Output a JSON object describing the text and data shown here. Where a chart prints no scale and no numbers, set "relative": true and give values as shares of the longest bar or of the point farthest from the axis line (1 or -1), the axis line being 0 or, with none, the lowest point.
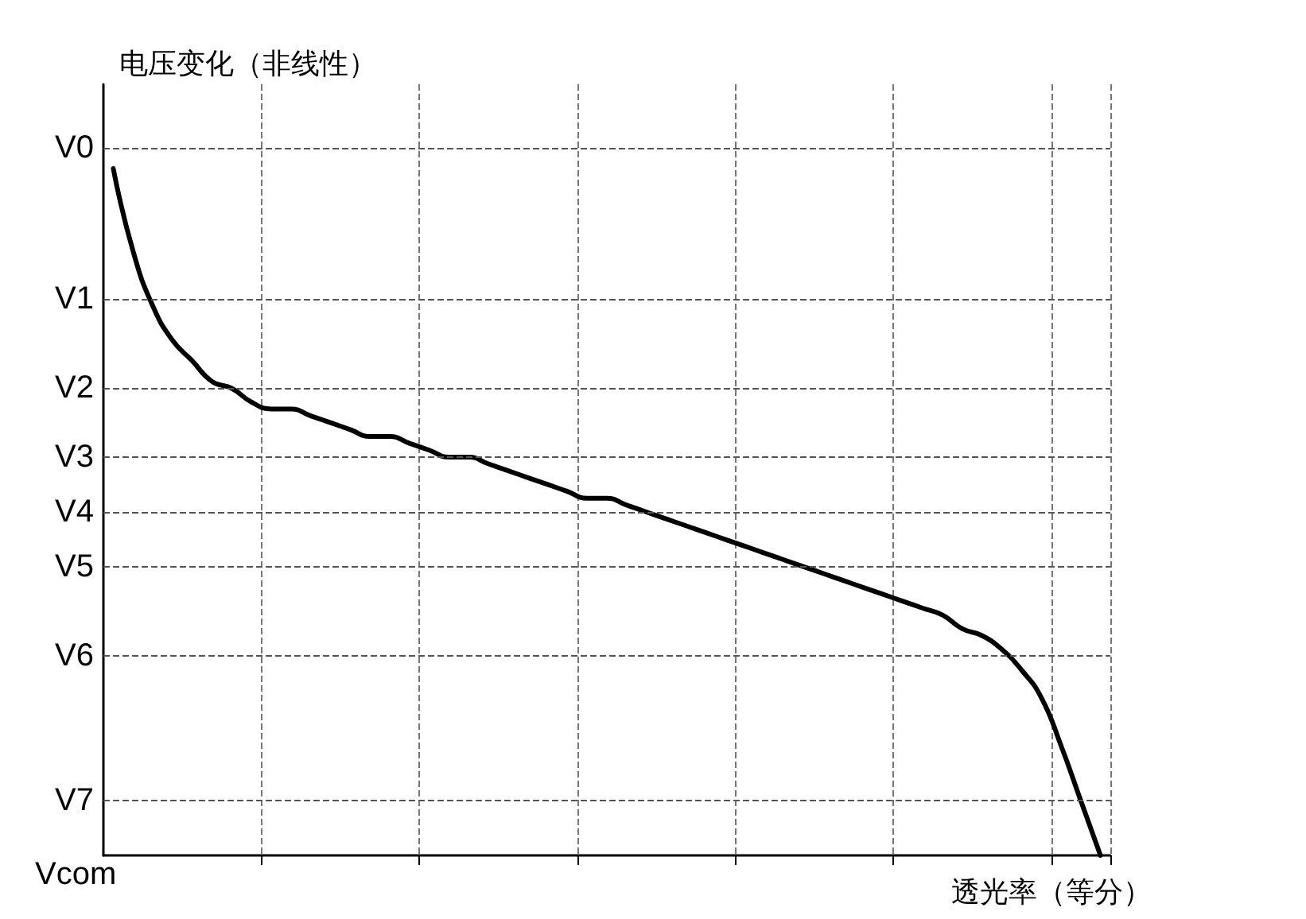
{
  "chart_data": {
    "type": "line",
    "relative": true,
    "ylabel": "电压变化（非线性）",
    "xlabel": "透光率（等分）",
    "annotations": [
      "Vcom"
    ],
    "color": "#000000",
    "marker": "none",
    "grid": "x",
    "categories": [
      null,
      null,
      null,
      null,
      null,
      null,
      null,
      null,
      null,
      null,
      null,
      null,
      null,
      null,
      null,
      null,
      null,
      null,
      null,
      null,
      null,
      null,
      null,
      null,
      null,
      null,
      null,
      null,
      null,
      null,
      null,
      null,
      null,
      null,
      null,
      null,
      null,
      null,
      null,
      null,
      null,
      null,
      null,
      null,
      null,
      null,
      null,
      null,
      null,
      null,
      null
    ],
    "values": [
      1,
      0.88,
      0.8,
      0.75,
      0.72,
      0.69,
      0.68,
      0.66,
      0.65,
      0.65,
      0.64,
      0.63,
      0.62,
      0.61,
      0.61,
      0.6,
      0.59,
      0.58,
      0.58,
      0.57,
      0.56,
      0.55,
      0.54,
      0.53,
      0.52,
      0.52,
      0.51,
      0.5,
      0.49,
      0.48,
      0.47,
      0.46,
      0.45,
      0.44,
      0.43,
      0.42,
      0.41,
      0.4,
      0.39,
      0.38,
      0.37,
      0.36,
      0.35,
      0.33,
      0.32,
      0.3,
      0.27,
      0.23,
      0.16,
      0.08,
      0
    ],
    "ref_lines": [
      {
        "axis": "y",
        "value": 1.03,
        "label": "V0",
        "line_style": "dashed",
        "color": "#555555"
      },
      {
        "axis": "y",
        "value": 0.81,
        "label": "V1",
        "line_style": "dashed",
        "color": "#555555"
      },
      {
        "axis": "y",
        "value": 0.68,
        "label": "V2",
        "line_style": "dashed",
        "color": "#555555"
      },
      {
        "axis": "y",
        "value": 0.58,
        "label": "V3",
        "line_style": "dashed",
        "color": "#555555"
      },
      {
        "axis": "y",
        "value": 0.5,
        "label": "V4",
        "line_style": "dashed",
        "color": "#555555"
      },
      {
        "axis": "y",
        "value": 0.42,
        "label": "V5",
        "line_style": "dashed",
        "color": "#555555"
      },
      {
        "axis": "y",
        "value": 0.29,
        "label": "V6",
        "line_style": "dashed",
        "color": "#555555"
      },
      {
        "axis": "y",
        "value": 0.08,
        "label": "V7",
        "line_style": "dashed",
        "color": "#555555"
      }
    ]
  }
}
